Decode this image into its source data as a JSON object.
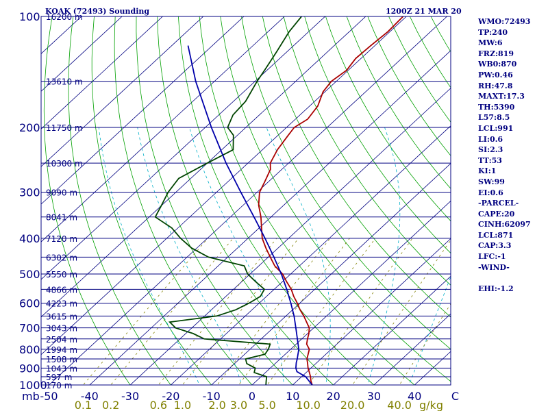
{
  "chart_data": {
    "type": "line",
    "title": "KOAK (72493) Sounding",
    "subtitle": "1200Z 21 MAR 20",
    "pressure_levels": [
      100,
      200,
      300,
      400,
      500,
      600,
      700,
      800,
      900,
      1000
    ],
    "pressure_tick_labels": [
      "100",
      "200",
      "300",
      "400",
      "500",
      "600",
      "700",
      "800",
      "900",
      "1000"
    ],
    "height_levels": [
      {
        "p": 100,
        "label": "16200 m"
      },
      {
        "p": 150,
        "label": "13610 m"
      },
      {
        "p": 200,
        "label": "11750 m"
      },
      {
        "p": 250,
        "label": "10300 m"
      },
      {
        "p": 300,
        "label": "9090 m"
      },
      {
        "p": 350,
        "label": "8041 m"
      },
      {
        "p": 400,
        "label": "7120 m"
      },
      {
        "p": 450,
        "label": "6302 m"
      },
      {
        "p": 500,
        "label": "5550 m"
      },
      {
        "p": 550,
        "label": "4866 m"
      },
      {
        "p": 600,
        "label": "4223 m"
      },
      {
        "p": 650,
        "label": "3615 m"
      },
      {
        "p": 700,
        "label": "3043 m"
      },
      {
        "p": 750,
        "label": "2504 m"
      },
      {
        "p": 800,
        "label": "1994 m"
      },
      {
        "p": 850,
        "label": "1508 m"
      },
      {
        "p": 900,
        "label": "1043 m"
      },
      {
        "p": 950,
        "label": "597 m"
      },
      {
        "p": 1000,
        "label": "170 m"
      }
    ],
    "temp_ticks": [
      -50,
      -40,
      -30,
      -20,
      -10,
      0,
      10,
      20,
      30,
      40,
      50
    ],
    "temp_tick_labels": [
      "-50",
      "-40",
      "-30",
      "-20",
      "-10",
      "0",
      "10",
      "20",
      "30",
      "40",
      "C"
    ],
    "bottom_left_label": "mb",
    "mixing_ratio_ticks": [
      0.1,
      0.2,
      0.6,
      1.0,
      2.0,
      3.0,
      5.0,
      10.0,
      20.0,
      40.0
    ],
    "mixing_ratio_labels": [
      "0.1",
      "0.2",
      "0.6",
      "1.0",
      "2.0",
      "3.0",
      "5.0",
      "10.0",
      "20.0",
      "40.0"
    ],
    "mixing_ratio_unit": "g/kg",
    "xlim": [
      -50,
      50
    ],
    "ylim": [
      1000,
      100
    ],
    "grid": true,
    "series": [
      {
        "role": "temperature",
        "color": "#aa0000",
        "points": [
          [
            1010,
            14.0
          ],
          [
            1000,
            14.8
          ],
          [
            975,
            13.4
          ],
          [
            950,
            12.2
          ],
          [
            925,
            10.8
          ],
          [
            900,
            9.3
          ],
          [
            875,
            8.0
          ],
          [
            850,
            6.6
          ],
          [
            825,
            5.6
          ],
          [
            800,
            4.6
          ],
          [
            775,
            2.6
          ],
          [
            750,
            1.4
          ],
          [
            725,
            0.3
          ],
          [
            700,
            -1.1
          ],
          [
            675,
            -3.3
          ],
          [
            650,
            -5.6
          ],
          [
            625,
            -8.2
          ],
          [
            600,
            -10.6
          ],
          [
            575,
            -13.3
          ],
          [
            550,
            -15.8
          ],
          [
            525,
            -18.9
          ],
          [
            500,
            -22.0
          ],
          [
            475,
            -26.1
          ],
          [
            450,
            -29.5
          ],
          [
            425,
            -33.0
          ],
          [
            400,
            -36.5
          ],
          [
            375,
            -39.4
          ],
          [
            350,
            -42.5
          ],
          [
            325,
            -46.2
          ],
          [
            300,
            -49.4
          ],
          [
            280,
            -51.0
          ],
          [
            260,
            -52.8
          ],
          [
            250,
            -54.5
          ],
          [
            230,
            -56.3
          ],
          [
            210,
            -57.5
          ],
          [
            200,
            -58.1
          ],
          [
            190,
            -57.0
          ],
          [
            175,
            -58.0
          ],
          [
            160,
            -60.5
          ],
          [
            150,
            -61.2
          ],
          [
            140,
            -60.4
          ],
          [
            130,
            -61.3
          ],
          [
            120,
            -61.0
          ],
          [
            110,
            -60.5
          ],
          [
            100,
            -60.8
          ]
        ]
      },
      {
        "role": "dewpoint",
        "color": "#004400",
        "points": [
          [
            1010,
            4.3
          ],
          [
            1000,
            3.4
          ],
          [
            975,
            2.4
          ],
          [
            950,
            1.4
          ],
          [
            925,
            -2.8
          ],
          [
            900,
            -3.7
          ],
          [
            875,
            -7.0
          ],
          [
            850,
            -8.5
          ],
          [
            825,
            -5.0
          ],
          [
            800,
            -5.5
          ],
          [
            775,
            -6.4
          ],
          [
            750,
            -24.0
          ],
          [
            725,
            -28.2
          ],
          [
            700,
            -34.0
          ],
          [
            675,
            -37.0
          ],
          [
            650,
            -27.0
          ],
          [
            625,
            -24.0
          ],
          [
            600,
            -22.5
          ],
          [
            575,
            -21.5
          ],
          [
            550,
            -22.4
          ],
          [
            525,
            -26.5
          ],
          [
            500,
            -30.6
          ],
          [
            475,
            -33.6
          ],
          [
            450,
            -44.7
          ],
          [
            425,
            -51.3
          ],
          [
            400,
            -56.6
          ],
          [
            375,
            -61.5
          ],
          [
            350,
            -68.5
          ],
          [
            325,
            -70.1
          ],
          [
            300,
            -71.9
          ],
          [
            275,
            -73.0
          ],
          [
            250,
            -70.0
          ],
          [
            230,
            -67.2
          ],
          [
            210,
            -71.0
          ],
          [
            200,
            -74.5
          ],
          [
            185,
            -76.5
          ],
          [
            170,
            -77.0
          ],
          [
            150,
            -79.5
          ],
          [
            140,
            -80.6
          ],
          [
            125,
            -82.5
          ],
          [
            110,
            -84.8
          ],
          [
            100,
            -85.8
          ]
        ]
      },
      {
        "role": "parcel",
        "color": "#0000aa",
        "points": [
          [
            1000,
            14.8
          ],
          [
            950,
            11.0
          ],
          [
            920,
            7.5
          ],
          [
            900,
            6.3
          ],
          [
            871,
            5.0
          ],
          [
            850,
            4.2
          ],
          [
            800,
            2.0
          ],
          [
            750,
            -1.1
          ],
          [
            700,
            -4.4
          ],
          [
            650,
            -8.0
          ],
          [
            600,
            -12.2
          ],
          [
            550,
            -16.9
          ],
          [
            500,
            -22.3
          ],
          [
            450,
            -28.6
          ],
          [
            400,
            -35.8
          ],
          [
            350,
            -44.2
          ],
          [
            300,
            -54.0
          ],
          [
            250,
            -65.4
          ],
          [
            200,
            -78.5
          ],
          [
            150,
            -94.6
          ],
          [
            120,
            -106.0
          ]
        ]
      }
    ]
  },
  "indices": [
    "WMO:72493",
    "TP:240",
    "MW:6",
    "FRZ:819",
    "WB0:870",
    "PW:0.46",
    "RH:47.8",
    "MAXT:17.3",
    "TH:5390",
    "L57:8.5",
    "LCL:991",
    "LI:0.6",
    "SI:2.3",
    "TT:53",
    "KI:1",
    "SW:99",
    "EI:0.6",
    "-PARCEL-",
    "CAPE:20",
    "CINH:62097",
    "LCL:871",
    "CAP:3.3",
    "LFC:-1",
    "-WIND-",
    "",
    "EHI:-1.2"
  ],
  "colors": {
    "frame": "#000080",
    "isotherm": "#000080",
    "isobar": "#000080",
    "dry_adiabat": "#00a000",
    "moist_adiabat": "#00b0c8",
    "mixing_ratio": "#808000",
    "temperature": "#aa0000",
    "dewpoint": "#004400",
    "parcel": "#0000aa"
  }
}
